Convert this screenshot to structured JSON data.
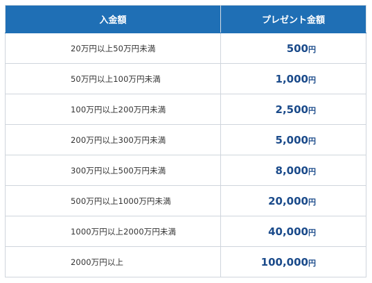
{
  "table": {
    "headers": [
      "入金額",
      "プレゼント金額"
    ],
    "rows": [
      {
        "range": "20万円以上50万円未満",
        "amount": "500",
        "unit": "円"
      },
      {
        "range": "50万円以上100万円未満",
        "amount": "1,000",
        "unit": "円"
      },
      {
        "range": "100万円以上200万円未満",
        "amount": "2,500",
        "unit": "円"
      },
      {
        "range": "200万円以上300万円未満",
        "amount": "5,000",
        "unit": "円"
      },
      {
        "range": "300万円以上500万円未満",
        "amount": "8,000",
        "unit": "円"
      },
      {
        "range": "500万円以上1000万円未満",
        "amount": "20,000",
        "unit": "円"
      },
      {
        "range": "1000万円以上2000万円未満",
        "amount": "40,000",
        "unit": "円"
      },
      {
        "range": "2000万円以上",
        "amount": "100,000",
        "unit": "円"
      }
    ]
  },
  "colors": {
    "header_bg": "#1f6fb5",
    "header_text": "#ffffff",
    "amount_text": "#1a4a8a",
    "range_text": "#333333",
    "border": "#cfd5dc"
  }
}
